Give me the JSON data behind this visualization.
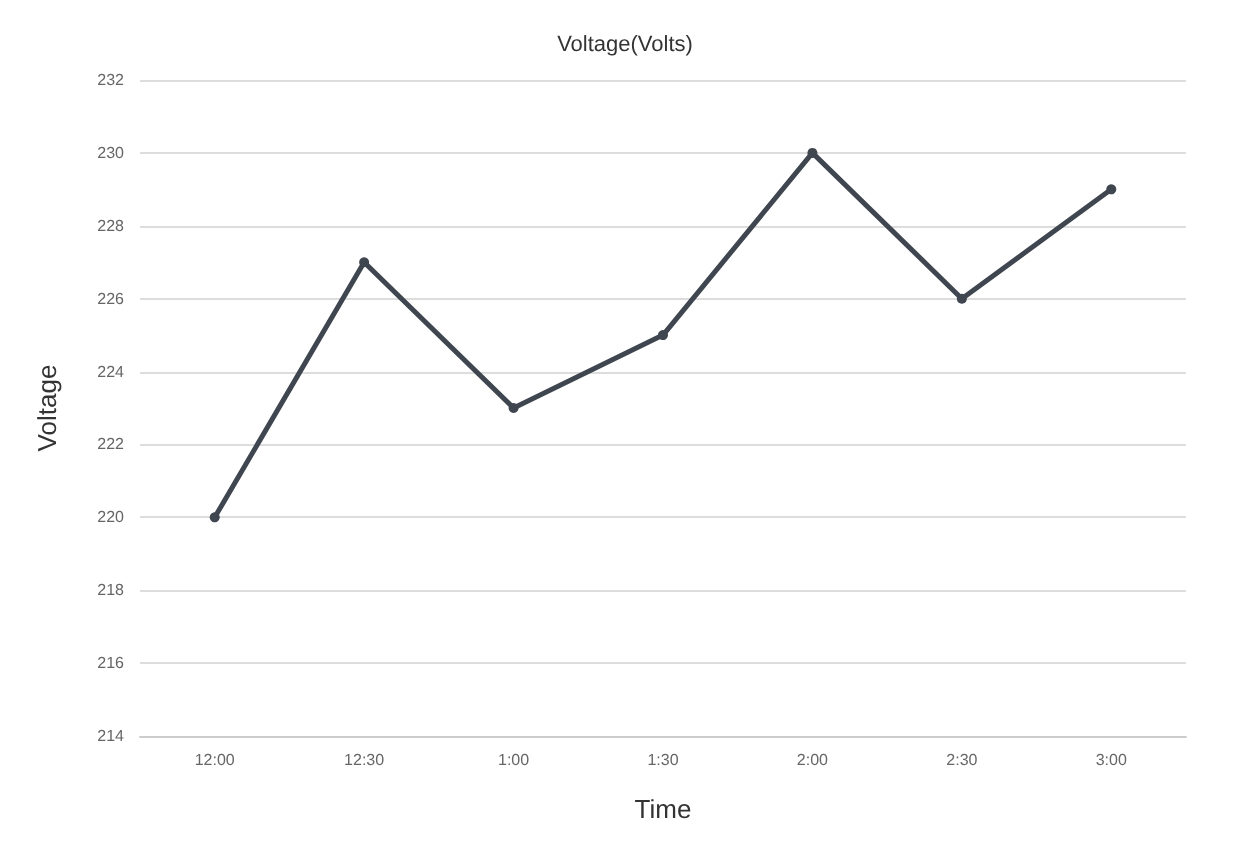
{
  "chart_data": {
    "type": "line",
    "title": "Voltage(Volts)",
    "xlabel": "Time",
    "ylabel": "Voltage",
    "categories": [
      "12:00",
      "12:30",
      "1:00",
      "1:30",
      "2:00",
      "2:30",
      "3:00"
    ],
    "values": [
      220,
      227,
      223,
      225,
      230,
      226,
      229
    ],
    "color": "#3f4650",
    "ylim": [
      214,
      232
    ],
    "yticks": [
      214,
      216,
      218,
      220,
      222,
      224,
      226,
      228,
      230,
      232
    ],
    "grid": "y",
    "marker": "circle"
  }
}
